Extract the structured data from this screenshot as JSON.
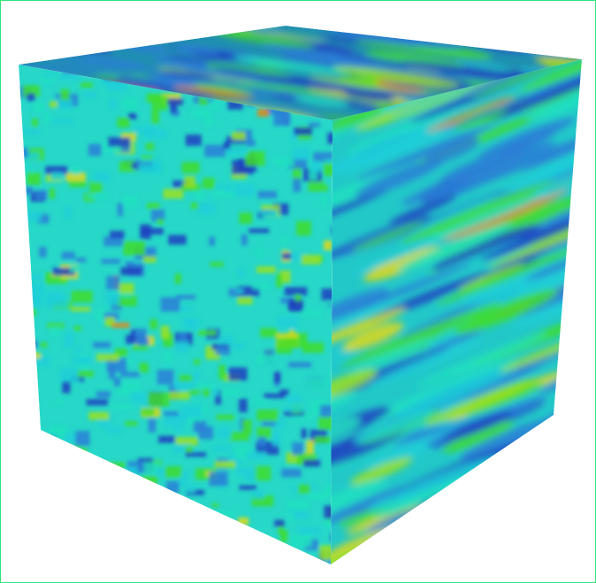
{
  "scene": {
    "object": "textured-cube",
    "colors": {
      "border": "#2ee57a",
      "background": "#ffffff",
      "palette": [
        "#1e3fbf",
        "#2a7fd6",
        "#1ccfd8",
        "#22e0c0",
        "#3fdc2a",
        "#9be01c",
        "#e0d81a",
        "#e08a1a"
      ]
    },
    "faces": [
      "top",
      "left",
      "right"
    ]
  }
}
